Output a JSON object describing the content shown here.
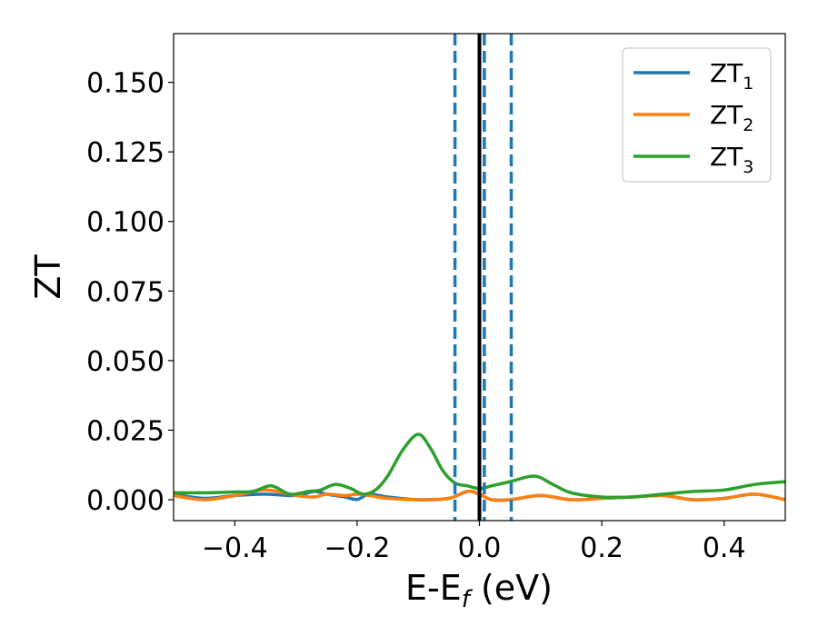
{
  "chart_data": {
    "type": "line",
    "xlabel": {
      "main": "E-E",
      "sub": "f",
      "rest": " (eV)"
    },
    "ylabel": "ZT",
    "xlim": [
      -0.5,
      0.5
    ],
    "ylim": [
      -0.0075,
      0.1675
    ],
    "x_ticks": [
      -0.4,
      -0.2,
      0.0,
      0.2,
      0.4
    ],
    "x_tick_labels": [
      "−0.4",
      "−0.2",
      "0.0",
      "0.2",
      "0.4"
    ],
    "y_ticks": [
      0.0,
      0.025,
      0.05,
      0.075,
      0.1,
      0.125,
      0.15
    ],
    "y_tick_labels": [
      "0.000",
      "0.025",
      "0.050",
      "0.075",
      "0.100",
      "0.125",
      "0.150"
    ],
    "grid": false,
    "legend_position": "top-right",
    "vertical_lines": [
      {
        "x": 0.0,
        "style": "solid",
        "color": "#000000"
      },
      {
        "x": -0.04,
        "style": "dashed",
        "color": "#1f77b4"
      },
      {
        "x": 0.008,
        "style": "dashed",
        "color": "#1f77b4"
      },
      {
        "x": 0.052,
        "style": "dashed",
        "color": "#1f77b4"
      }
    ],
    "series": [
      {
        "name": "ZT",
        "name_sub": "1",
        "color": "#1f77b4",
        "x": [
          -0.5,
          -0.45,
          -0.4,
          -0.35,
          -0.3,
          -0.27,
          -0.25,
          -0.22,
          -0.2,
          -0.18,
          -0.15,
          -0.1,
          -0.05,
          -0.02,
          0.0,
          0.02,
          0.05,
          0.1,
          0.15,
          0.2,
          0.25,
          0.3,
          0.35,
          0.4,
          0.45,
          0.5
        ],
        "y": [
          0.002,
          0.0005,
          0.0015,
          0.002,
          0.0015,
          0.003,
          0.002,
          0.001,
          0.0001,
          0.002,
          0.001,
          0.0,
          0.0005,
          0.003,
          0.002,
          0.0,
          0.0,
          0.0015,
          0.0,
          0.0005,
          0.001,
          0.0015,
          0.0,
          0.0005,
          0.002,
          0.0
        ]
      },
      {
        "name": "ZT",
        "name_sub": "2",
        "color": "#ff7f0e",
        "x": [
          -0.5,
          -0.45,
          -0.4,
          -0.35,
          -0.3,
          -0.27,
          -0.25,
          -0.22,
          -0.2,
          -0.18,
          -0.15,
          -0.1,
          -0.05,
          -0.02,
          0.0,
          0.02,
          0.05,
          0.1,
          0.15,
          0.2,
          0.25,
          0.3,
          0.35,
          0.4,
          0.45,
          0.5
        ],
        "y": [
          0.0015,
          0.0,
          0.0015,
          0.0035,
          0.0015,
          0.001,
          0.002,
          0.0015,
          0.002,
          0.0015,
          0.0005,
          0.0,
          0.0005,
          0.003,
          0.002,
          0.0,
          0.0,
          0.0015,
          0.0,
          0.0005,
          0.001,
          0.0015,
          0.0,
          0.0005,
          0.002,
          0.0
        ]
      },
      {
        "name": "ZT",
        "name_sub": "3",
        "color": "#2ca02c",
        "x": [
          -0.5,
          -0.45,
          -0.4,
          -0.37,
          -0.34,
          -0.31,
          -0.28,
          -0.26,
          -0.235,
          -0.21,
          -0.19,
          -0.17,
          -0.15,
          -0.125,
          -0.1,
          -0.08,
          -0.06,
          -0.04,
          -0.02,
          0.0,
          0.02,
          0.05,
          0.09,
          0.12,
          0.15,
          0.2,
          0.25,
          0.3,
          0.35,
          0.4,
          0.45,
          0.5
        ],
        "y": [
          0.0025,
          0.0025,
          0.0028,
          0.003,
          0.005,
          0.002,
          0.003,
          0.0035,
          0.0055,
          0.004,
          0.002,
          0.0035,
          0.0085,
          0.018,
          0.0235,
          0.0185,
          0.0105,
          0.006,
          0.005,
          0.004,
          0.005,
          0.0065,
          0.0085,
          0.0055,
          0.0025,
          0.001,
          0.001,
          0.002,
          0.003,
          0.0035,
          0.0055,
          0.0065
        ]
      }
    ]
  }
}
